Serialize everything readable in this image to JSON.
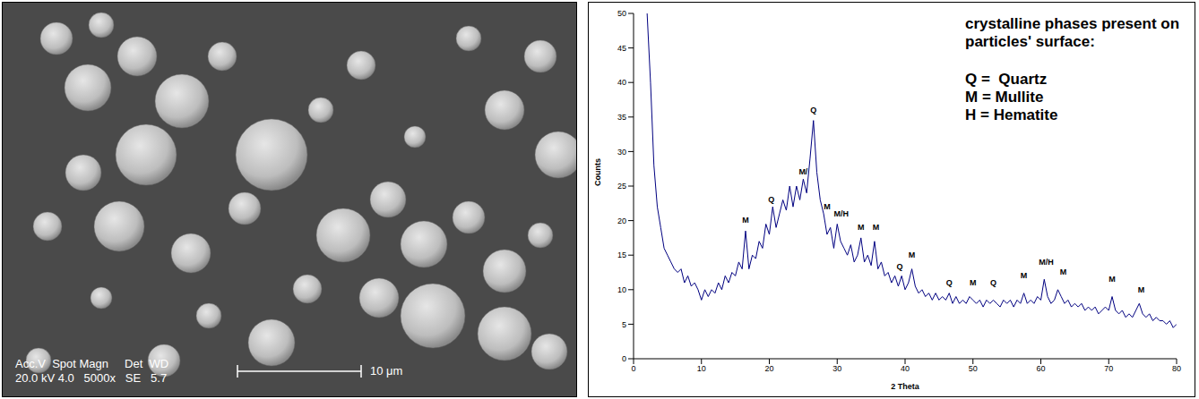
{
  "chart_data": {
    "type": "line",
    "xlabel": "2 Theta",
    "ylabel": "Counts",
    "color": "#000080",
    "grid": false,
    "xlim": [
      0,
      80
    ],
    "xticks": [
      0,
      10,
      20,
      30,
      40,
      50,
      60,
      70,
      80
    ],
    "ylim": [
      0,
      50
    ],
    "yticks": [
      0,
      5,
      10,
      15,
      20,
      25,
      30,
      35,
      40,
      45,
      50
    ],
    "x": [
      2,
      2.5,
      3,
      3.5,
      4,
      4.5,
      5,
      5.5,
      6,
      6.5,
      7,
      7.5,
      8,
      8.5,
      9,
      9.5,
      10,
      10.5,
      11,
      11.5,
      12,
      12.5,
      13,
      13.5,
      14,
      14.5,
      15,
      15.5,
      16,
      16.5,
      17,
      17.5,
      18,
      18.5,
      19,
      19.5,
      20,
      20.5,
      21,
      21.5,
      22,
      22.5,
      23,
      23.5,
      24,
      24.5,
      25,
      25.5,
      26,
      26.5,
      27,
      27.5,
      28,
      28.5,
      29,
      29.5,
      30,
      30.5,
      31,
      31.5,
      32,
      32.5,
      33,
      33.5,
      34,
      34.5,
      35,
      35.5,
      36,
      36.5,
      37,
      37.5,
      38,
      38.5,
      39,
      39.5,
      40,
      40.5,
      41,
      41.5,
      42,
      42.5,
      43,
      43.5,
      44,
      44.5,
      45,
      45.5,
      46,
      46.5,
      47,
      47.5,
      48,
      48.5,
      49,
      49.5,
      50,
      50.5,
      51,
      51.5,
      52,
      52.5,
      53,
      53.5,
      54,
      54.5,
      55,
      55.5,
      56,
      56.5,
      57,
      57.5,
      58,
      58.5,
      59,
      59.5,
      60,
      60.5,
      61,
      61.5,
      62,
      62.5,
      63,
      63.5,
      64,
      64.5,
      65,
      65.5,
      66,
      66.5,
      67,
      67.5,
      68,
      68.5,
      69,
      69.5,
      70,
      70.5,
      71,
      71.5,
      72,
      72.5,
      73,
      73.5,
      74,
      74.5,
      75,
      75.5,
      76,
      76.5,
      77,
      77.5,
      78,
      78.5,
      79,
      79.5,
      80
    ],
    "values": [
      50,
      40,
      28,
      22,
      19,
      16,
      15,
      14,
      13,
      12.5,
      13,
      11,
      12,
      10.5,
      11,
      10,
      8.5,
      10,
      9,
      10,
      9.5,
      11,
      10,
      12,
      11,
      12.5,
      12,
      14,
      13,
      18.5,
      13,
      15,
      14.5,
      17,
      16,
      19.5,
      18,
      22,
      19,
      21,
      23,
      21.5,
      25,
      22,
      25,
      23,
      26,
      24,
      29,
      34.5,
      27,
      23,
      21,
      18,
      19,
      16,
      19.5,
      17,
      16,
      15,
      16.5,
      14,
      15,
      17.5,
      14,
      15,
      13.5,
      17,
      13,
      14,
      12,
      12.5,
      11,
      12,
      10.5,
      12,
      10,
      11,
      13,
      10.5,
      9.5,
      10,
      9,
      9.5,
      8.5,
      9.5,
      8.5,
      9,
      8.5,
      9.5,
      8,
      9,
      8,
      8.5,
      8,
      9,
      8.5,
      8,
      8.5,
      7.5,
      8.5,
      8,
      8.5,
      8,
      7.5,
      8.5,
      8,
      8.5,
      7.5,
      8.5,
      8,
      9.5,
      8,
      8.5,
      8,
      9,
      8.5,
      11.5,
      9,
      8,
      8.5,
      10,
      9,
      8,
      8.5,
      7.5,
      8,
      7.5,
      8,
      7,
      7.5,
      7,
      7.5,
      6.5,
      7,
      7.5,
      7,
      9,
      7,
      6.5,
      7,
      6,
      6.5,
      6,
      7,
      8,
      6.5,
      6,
      6.5,
      5.5,
      6,
      5.5,
      5.5,
      5,
      5.5,
      4.5,
      5
    ],
    "annotations": [
      {
        "text": "M",
        "x": 16.5,
        "y": 19.5
      },
      {
        "text": "Q",
        "x": 20.3,
        "y": 22.5
      },
      {
        "text": "M/",
        "x": 25,
        "y": 26.5
      },
      {
        "text": "Q",
        "x": 26.5,
        "y": 35.5
      },
      {
        "text": "M",
        "x": 28.5,
        "y": 21.5
      },
      {
        "text": "M/H",
        "x": 30.6,
        "y": 20.5
      },
      {
        "text": "M",
        "x": 33.5,
        "y": 18.5
      },
      {
        "text": "M",
        "x": 35.7,
        "y": 18.5
      },
      {
        "text": "Q",
        "x": 39.2,
        "y": 12.8
      },
      {
        "text": "M",
        "x": 41,
        "y": 14.5
      },
      {
        "text": "Q",
        "x": 46.5,
        "y": 10.5
      },
      {
        "text": "M",
        "x": 50,
        "y": 10.5
      },
      {
        "text": "Q",
        "x": 53,
        "y": 10.5
      },
      {
        "text": "M",
        "x": 57.5,
        "y": 11.5
      },
      {
        "text": "M/H",
        "x": 60.8,
        "y": 13.5
      },
      {
        "text": "M",
        "x": 63.3,
        "y": 12
      },
      {
        "text": "M",
        "x": 70.5,
        "y": 11
      },
      {
        "text": "M",
        "x": 74.8,
        "y": 9.5
      }
    ],
    "note_title": "crystalline phases present on particles' surface:",
    "note_lines": [
      "Q =  Quartz",
      "M = Mullite",
      "H = Hematite"
    ]
  },
  "micrograph": {
    "info_header": "Acc.V  Spot Magn     Det  WD",
    "info_values": "20.0 kV 4.0   5000x   SE   5.7",
    "scale_bar": "10 μm"
  }
}
